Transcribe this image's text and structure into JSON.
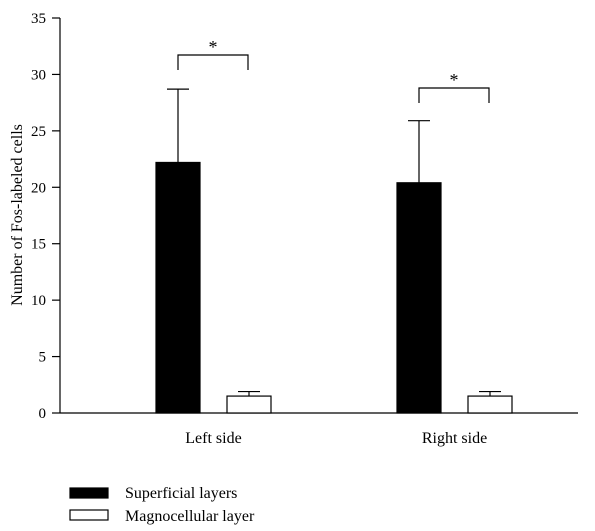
{
  "chart_data": {
    "type": "bar",
    "title": "",
    "xlabel": "",
    "ylabel": "Number of Fos-labeled cells",
    "ylim": [
      0,
      35
    ],
    "yticks": [
      0,
      5,
      10,
      15,
      20,
      25,
      30,
      35
    ],
    "categories": [
      "Left side",
      "Right side"
    ],
    "series": [
      {
        "name": "Superficial layers",
        "values": [
          22.2,
          20.4
        ],
        "errors": [
          6.5,
          5.5
        ],
        "color": "#000000"
      },
      {
        "name": "Magnocellular layer",
        "values": [
          1.5,
          1.5
        ],
        "errors": [
          0.4,
          0.4
        ],
        "color": "#ffffff"
      }
    ],
    "annotations": [
      {
        "category": "Left side",
        "text": "*",
        "type": "significance-bracket"
      },
      {
        "category": "Right side",
        "text": "*",
        "type": "significance-bracket"
      }
    ],
    "legend": {
      "placement": "bottom-left"
    },
    "grid": false
  }
}
